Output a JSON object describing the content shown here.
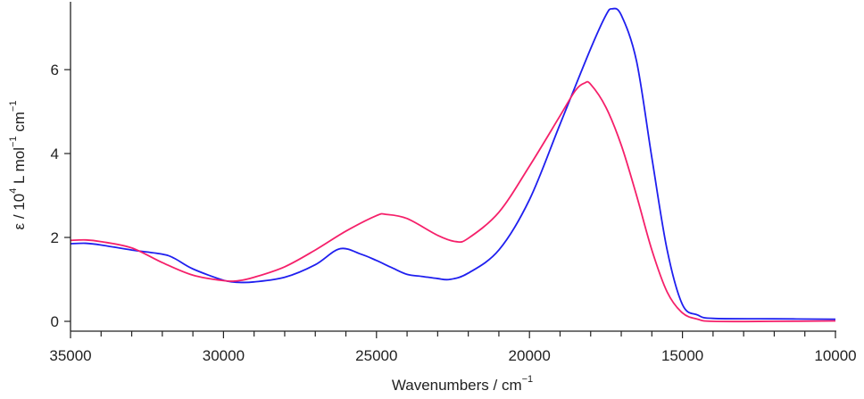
{
  "chart_data": {
    "type": "line",
    "xlabel": "Wavenumbers / cm",
    "xlabel_sup": "−1",
    "ylabel_parts": [
      "ε / 10",
      "4",
      " L mol",
      "−1",
      " cm",
      "−1"
    ],
    "xlim": [
      35000,
      10000
    ],
    "ylim": [
      -0.25,
      7.6
    ],
    "x_ticks": [
      35000,
      30000,
      25000,
      20000,
      15000,
      10000
    ],
    "x_minor_step": 1000,
    "y_ticks": [
      0,
      2,
      4,
      6
    ],
    "grid": false,
    "legend": "none",
    "series": [
      {
        "color": "#1f1fef",
        "x": [
          35000,
          34500,
          34000,
          33000,
          32000,
          31600,
          31000,
          30000,
          29500,
          29000,
          28000,
          27000,
          26200,
          25500,
          25000,
          24500,
          24000,
          23500,
          23000,
          22600,
          22000,
          21000,
          20000,
          19000,
          18000,
          17500,
          17300,
          17000,
          16500,
          16000,
          15500,
          15000,
          14500,
          14000,
          12000,
          10000
        ],
        "y": [
          1.85,
          1.86,
          1.82,
          1.7,
          1.6,
          1.5,
          1.25,
          0.98,
          0.93,
          0.94,
          1.05,
          1.35,
          1.73,
          1.6,
          1.45,
          1.28,
          1.12,
          1.07,
          1.02,
          1.0,
          1.15,
          1.7,
          2.9,
          4.7,
          6.5,
          7.3,
          7.45,
          7.3,
          6.2,
          3.9,
          1.7,
          0.4,
          0.15,
          0.07,
          0.06,
          0.05
        ]
      },
      {
        "color": "#f5206a",
        "x": [
          35000,
          34500,
          34000,
          33000,
          32000,
          31000,
          30000,
          29500,
          29000,
          28000,
          27000,
          26000,
          25000,
          24700,
          24000,
          23000,
          22400,
          22000,
          21000,
          20000,
          19000,
          18500,
          18200,
          18000,
          17500,
          17000,
          16500,
          16000,
          15500,
          15000,
          14500,
          14000,
          12000,
          10000
        ],
        "y": [
          1.93,
          1.94,
          1.9,
          1.75,
          1.4,
          1.1,
          0.97,
          0.97,
          1.05,
          1.3,
          1.7,
          2.15,
          2.52,
          2.55,
          2.45,
          2.05,
          1.9,
          1.98,
          2.6,
          3.7,
          4.9,
          5.5,
          5.68,
          5.65,
          5.1,
          4.2,
          3.0,
          1.7,
          0.7,
          0.2,
          0.05,
          0.0,
          0.0,
          0.01
        ]
      }
    ]
  }
}
